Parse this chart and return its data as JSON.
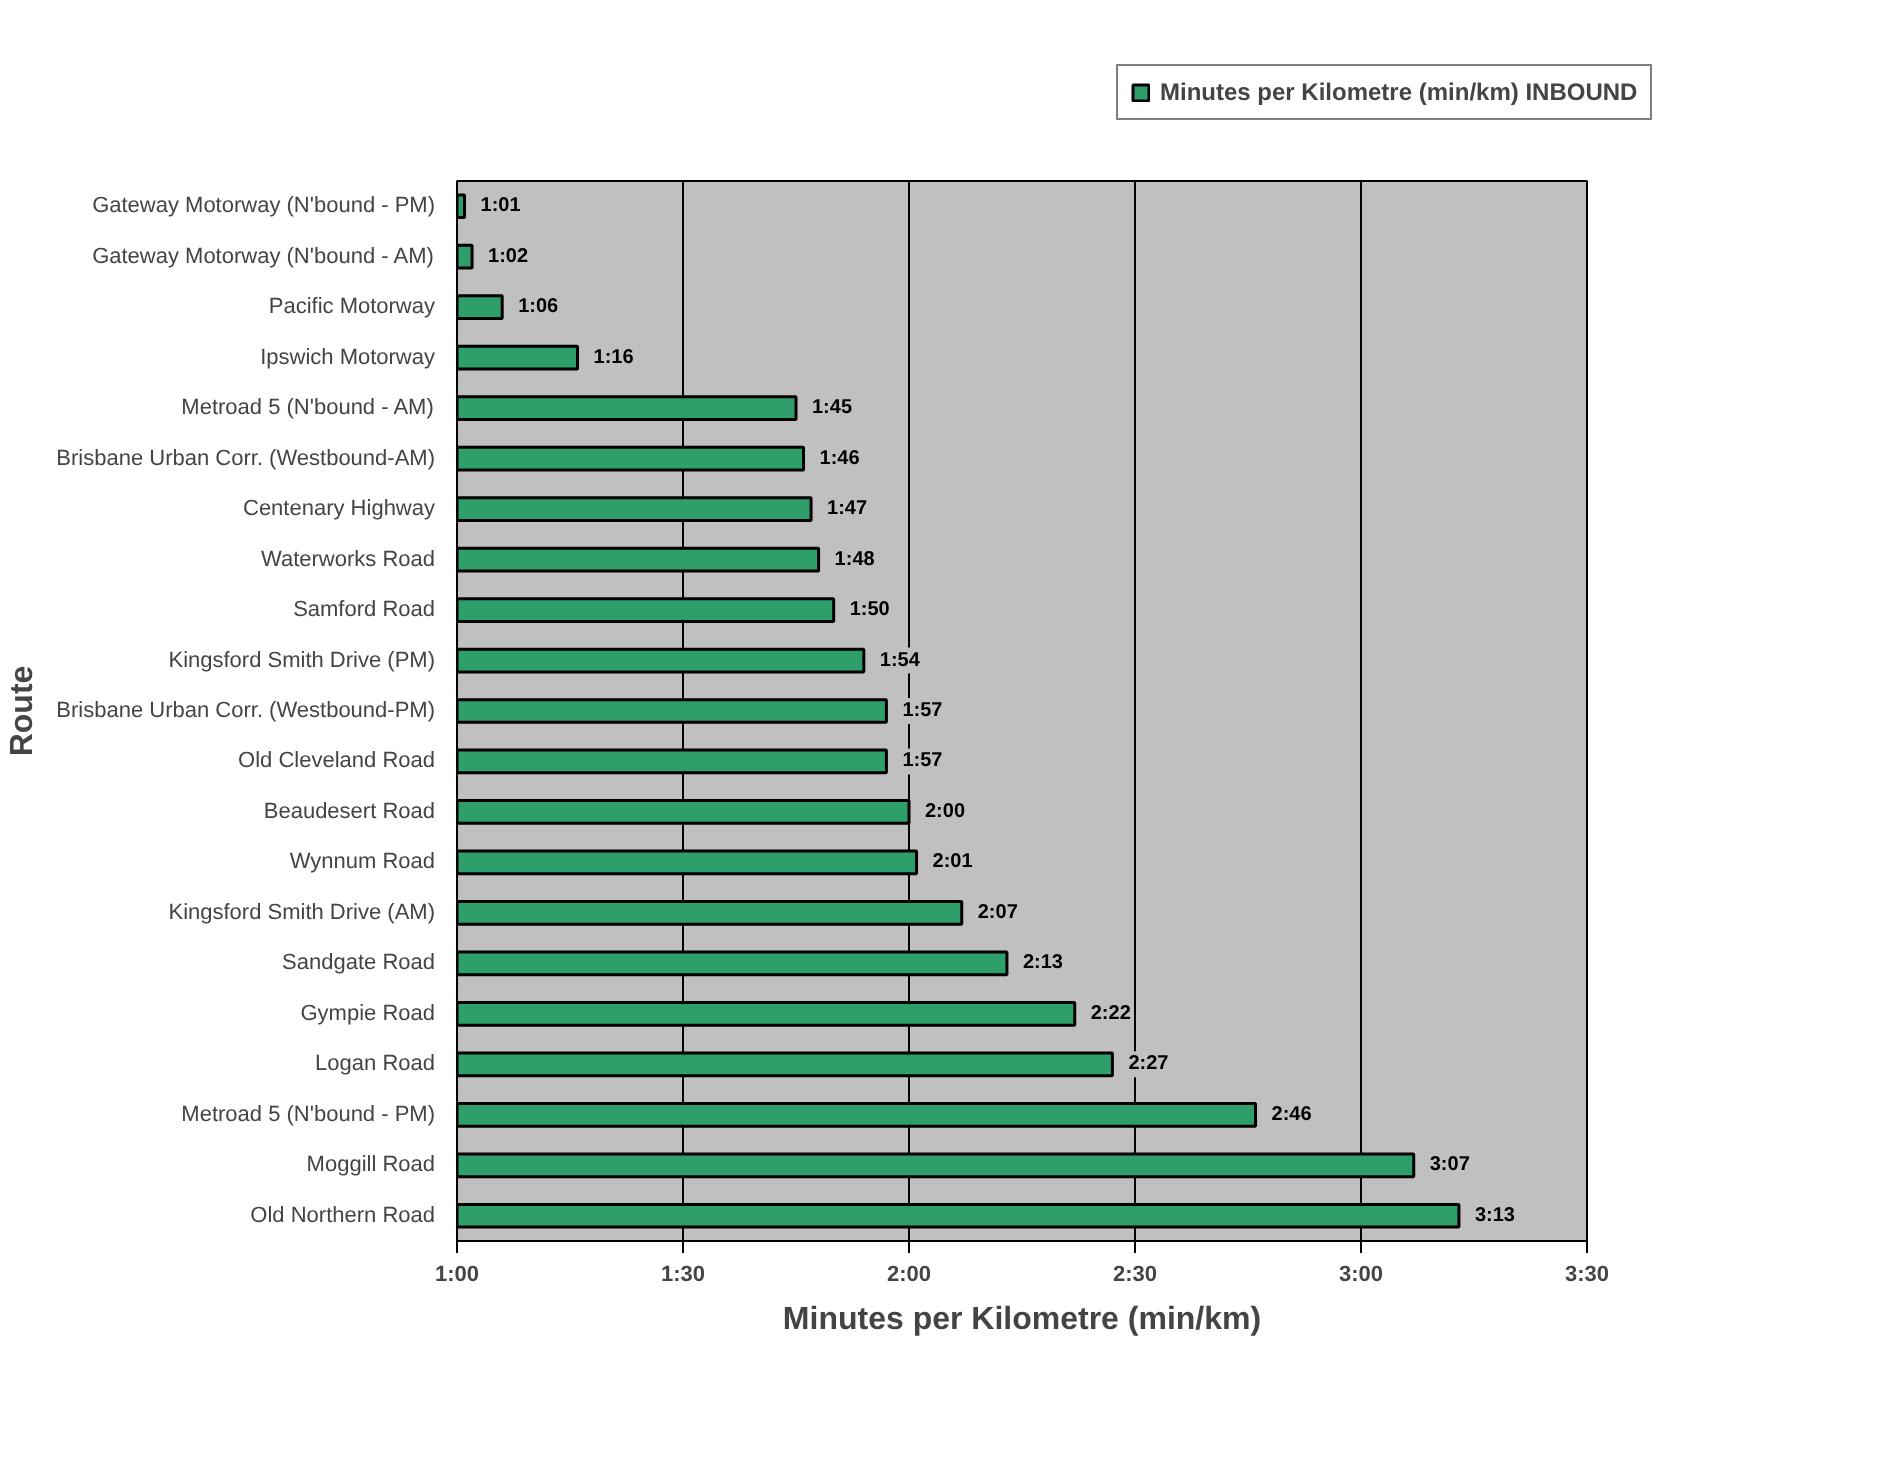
{
  "chart_data": {
    "type": "bar",
    "orientation": "horizontal",
    "xlabel": "Minutes per Kilometre (min/km)",
    "ylabel": "Route",
    "categories": [
      "Gateway Motorway (N'bound - PM)",
      "Gateway Motorway (N'bound - AM)",
      "Pacific Motorway",
      "Ipswich Motorway",
      "Metroad 5 (N'bound - AM)",
      "Brisbane Urban Corr. (Westbound-AM)",
      "Centenary Highway",
      "Waterworks Road",
      "Samford Road",
      "Kingsford Smith Drive (PM)",
      "Brisbane Urban Corr. (Westbound-PM)",
      "Old Cleveland Road",
      "Beaudesert Road",
      "Wynnum Road",
      "Kingsford Smith Drive (AM)",
      "Sandgate Road",
      "Gympie Road",
      "Logan Road",
      "Metroad 5 (N'bound - PM)",
      "Moggill Road",
      "Old Northern Road"
    ],
    "series": [
      {
        "name": "Minutes per Kilometre (min/km) INBOUND",
        "color": "#2e9e6b",
        "values": [
          61,
          62,
          66,
          76,
          105,
          106,
          107,
          108,
          110,
          114,
          117,
          117,
          120,
          121,
          127,
          133,
          142,
          147,
          166,
          187,
          193
        ],
        "value_labels": [
          "1:01",
          "1:02",
          "1:06",
          "1:16",
          "1:45",
          "1:46",
          "1:47",
          "1:48",
          "1:50",
          "1:54",
          "1:57",
          "1:57",
          "2:00",
          "2:01",
          "2:07",
          "2:13",
          "2:22",
          "2:27",
          "2:46",
          "3:07",
          "3:13"
        ]
      }
    ],
    "xlim": [
      60,
      210
    ],
    "xticks": [
      {
        "value": 60,
        "label": "1:00"
      },
      {
        "value": 90,
        "label": "1:30"
      },
      {
        "value": 120,
        "label": "2:00"
      },
      {
        "value": 150,
        "label": "2:30"
      },
      {
        "value": 180,
        "label": "3:00"
      },
      {
        "value": 210,
        "label": "3:30"
      }
    ],
    "grid": "x",
    "legend": "top"
  }
}
